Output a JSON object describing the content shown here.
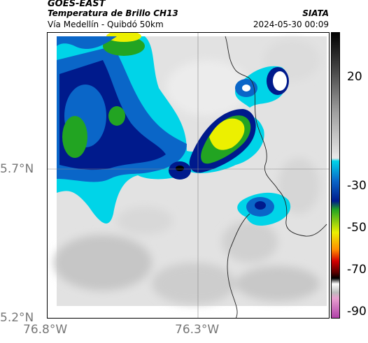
{
  "header": {
    "satellite": "GOES-EAST",
    "product": "Temperatura de Brillo CH13",
    "route": "Vía Medellín - Quibdó 50km",
    "agency": "SIATA",
    "timestamp": "2024-05-30 00:09"
  },
  "map": {
    "lat_ticks": [
      "5.7°N",
      "5.2°N"
    ],
    "lon_ticks": [
      "76.8°W",
      "76.3°W"
    ]
  },
  "colorbar": {
    "tick_labels": [
      "20",
      "-30",
      "-50",
      "-70",
      "-90"
    ],
    "colors": {
      "black": "#000000",
      "dark_gray": "#404040",
      "gray": "#a0a0a0",
      "light_gray": "#e8e8e8",
      "cyan": "#00d4e8",
      "blue": "#0a66c8",
      "navy": "#001a8c",
      "green": "#22a422",
      "yellow": "#ecf000",
      "orange": "#ff8c00",
      "red": "#d40000",
      "dark_red": "#5a0000",
      "pink": "#e8a0d0",
      "magenta": "#b040a8"
    }
  }
}
